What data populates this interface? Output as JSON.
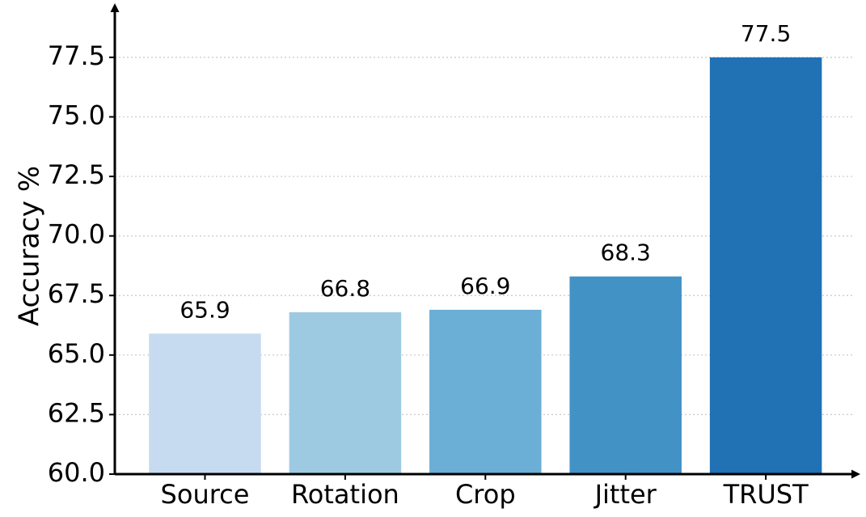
{
  "chart_data": {
    "type": "bar",
    "categories": [
      "Source",
      "Rotation",
      "Crop",
      "Jitter",
      "TRUST"
    ],
    "values": [
      65.9,
      66.8,
      66.9,
      68.3,
      77.5
    ],
    "value_labels": [
      "65.9",
      "66.8",
      "66.9",
      "68.3",
      "77.5"
    ],
    "bar_colors": [
      "#c6dbef",
      "#9ecae1",
      "#6baed6",
      "#4292c6",
      "#2171b5"
    ],
    "title": "",
    "xlabel": "",
    "ylabel": "Accuracy %",
    "ylim": [
      60.0,
      79.5
    ],
    "yticks": [
      60.0,
      62.5,
      65.0,
      67.5,
      70.0,
      72.5,
      75.0,
      77.5
    ],
    "ytick_labels": [
      "60.0",
      "62.5",
      "65.0",
      "67.5",
      "70.0",
      "72.5",
      "75.0",
      "77.5"
    ],
    "grid": "horizontal dotted",
    "legend": "none",
    "gridline_color": "#c8c8c8",
    "axis_color": "#000000"
  }
}
